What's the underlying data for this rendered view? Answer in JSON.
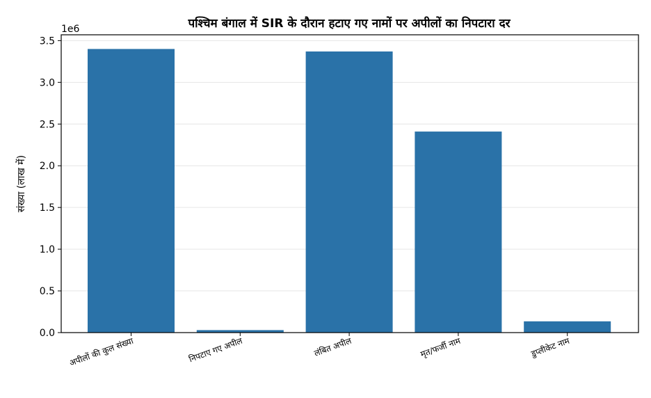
{
  "chart_data": {
    "type": "bar",
    "title": "पश्चिम बंगाल में SIR के दौरान हटाए गए नामों पर अपीलों का निपटारा दर",
    "xlabel": "",
    "ylabel": "संख्या (लाख में)",
    "y_offset_label": "1e6",
    "categories": [
      "अपीलों की कुल संख्या",
      "निपटाए गए अपील",
      "लंबित अपील",
      "मृत/फर्जी नाम",
      "डुप्लीकेट नाम"
    ],
    "values": [
      3400000,
      30000,
      3370000,
      2410000,
      135000
    ],
    "ylim": [
      0,
      3570000
    ],
    "yticks": [
      {
        "value": 0,
        "label": "0.0"
      },
      {
        "value": 500000,
        "label": "0.5"
      },
      {
        "value": 1000000,
        "label": "1.0"
      },
      {
        "value": 1500000,
        "label": "1.5"
      },
      {
        "value": 2000000,
        "label": "2.0"
      },
      {
        "value": 2500000,
        "label": "2.5"
      },
      {
        "value": 3000000,
        "label": "3.0"
      },
      {
        "value": 3500000,
        "label": "3.5"
      }
    ],
    "grid": "y",
    "bar_color": "#2a72a8",
    "grid_color": "#e6e6e6"
  }
}
